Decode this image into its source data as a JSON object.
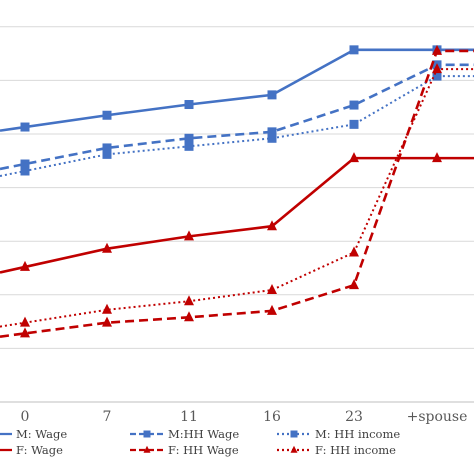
{
  "chart_data": {
    "type": "line",
    "x": [
      "0",
      "7",
      "11",
      "16",
      "23",
      "+spouse"
    ],
    "ylim": [
      0,
      7.5
    ],
    "grid": true,
    "legend_position": "bottom",
    "series": [
      {
        "name": "M: Wage",
        "values": [
          5.13,
          5.35,
          5.55,
          5.73,
          6.57,
          6.57
        ],
        "color": "#4472C4",
        "dash": "solid",
        "marker": "square"
      },
      {
        "name": "M:HH Wage",
        "values": [
          4.44,
          4.74,
          4.92,
          5.04,
          5.54,
          6.29
        ],
        "color": "#4472C4",
        "dash": "dashed",
        "marker": "square"
      },
      {
        "name": "M: HH income",
        "values": [
          4.31,
          4.62,
          4.77,
          4.92,
          5.18,
          6.08
        ],
        "color": "#4472C4",
        "dash": "dotted",
        "marker": "square"
      },
      {
        "name": "F: Wage",
        "values": [
          2.52,
          2.86,
          3.09,
          3.28,
          4.55,
          4.55
        ],
        "color": "#C00000",
        "dash": "solid",
        "marker": "triangle"
      },
      {
        "name": "F: HH Wage",
        "values": [
          1.28,
          1.48,
          1.58,
          1.7,
          2.18,
          6.55
        ],
        "color": "#C00000",
        "dash": "dashed",
        "marker": "triangle"
      },
      {
        "name": "F: HH income",
        "values": [
          1.48,
          1.72,
          1.88,
          2.09,
          2.79,
          6.21
        ],
        "color": "#C00000",
        "dash": "dotted",
        "marker": "triangle"
      }
    ]
  }
}
